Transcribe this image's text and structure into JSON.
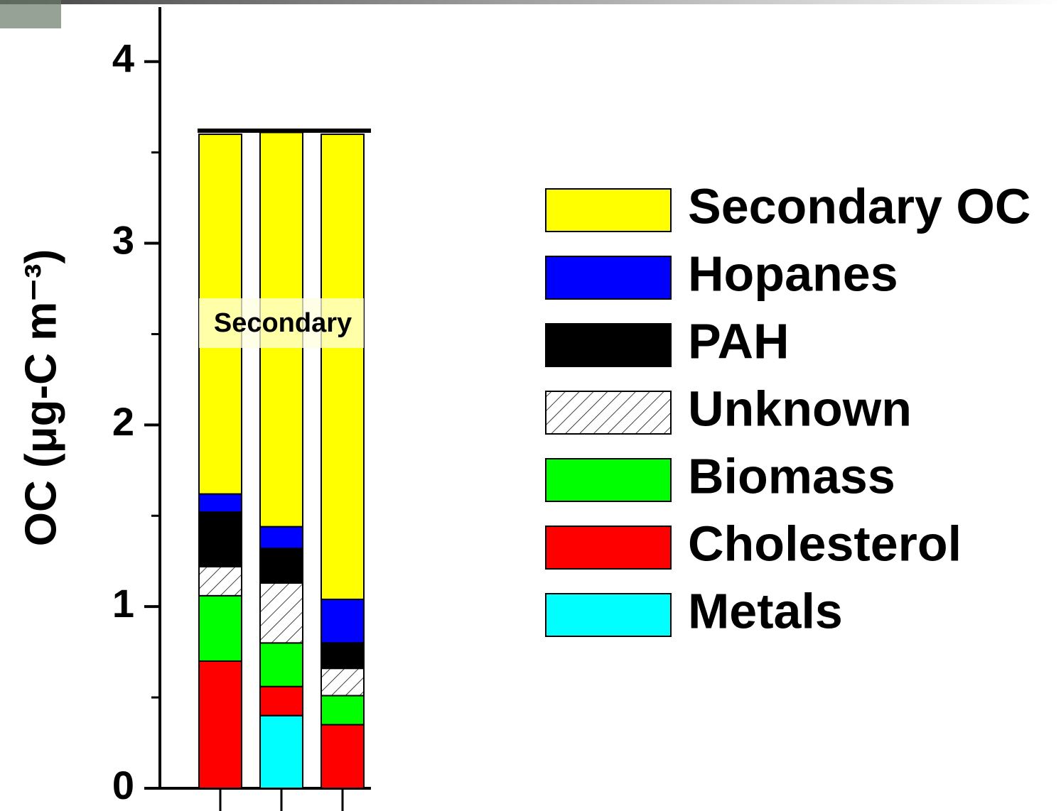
{
  "chart_data": {
    "type": "stacked_bar",
    "categories": [
      null,
      null,
      null
    ],
    "series": [
      {
        "name": "Metals",
        "color": "#00ffff",
        "values": [
          0,
          0.4,
          0
        ]
      },
      {
        "name": "Cholesterol",
        "color": "#ff0000",
        "values": [
          0.7,
          0.16,
          0.35
        ]
      },
      {
        "name": "Biomass",
        "color": "#00ff00",
        "values": [
          0.36,
          0.24,
          0.16
        ]
      },
      {
        "name": "Unknown",
        "color": "#ffffff",
        "hatch": true,
        "values": [
          0.16,
          0.33,
          0.15
        ]
      },
      {
        "name": "PAH",
        "color": "#000000",
        "values": [
          0.3,
          0.19,
          0.14
        ]
      },
      {
        "name": "Hopanes",
        "color": "#0000ff",
        "values": [
          0.1,
          0.12,
          0.24
        ]
      },
      {
        "name": "Secondary OC",
        "color": "#ffff00",
        "values": [
          1.98,
          2.17,
          2.56
        ]
      }
    ],
    "ylabel": "OC (μg-C m⁻³)",
    "ylim": [
      0,
      4.3
    ],
    "yticks": [
      0,
      1,
      2,
      3,
      4
    ],
    "yticks_minor": [
      0.5,
      1.5,
      2.5,
      3.5
    ],
    "reference_line": 3.62,
    "annotation": "Secondary",
    "legend": "right"
  }
}
